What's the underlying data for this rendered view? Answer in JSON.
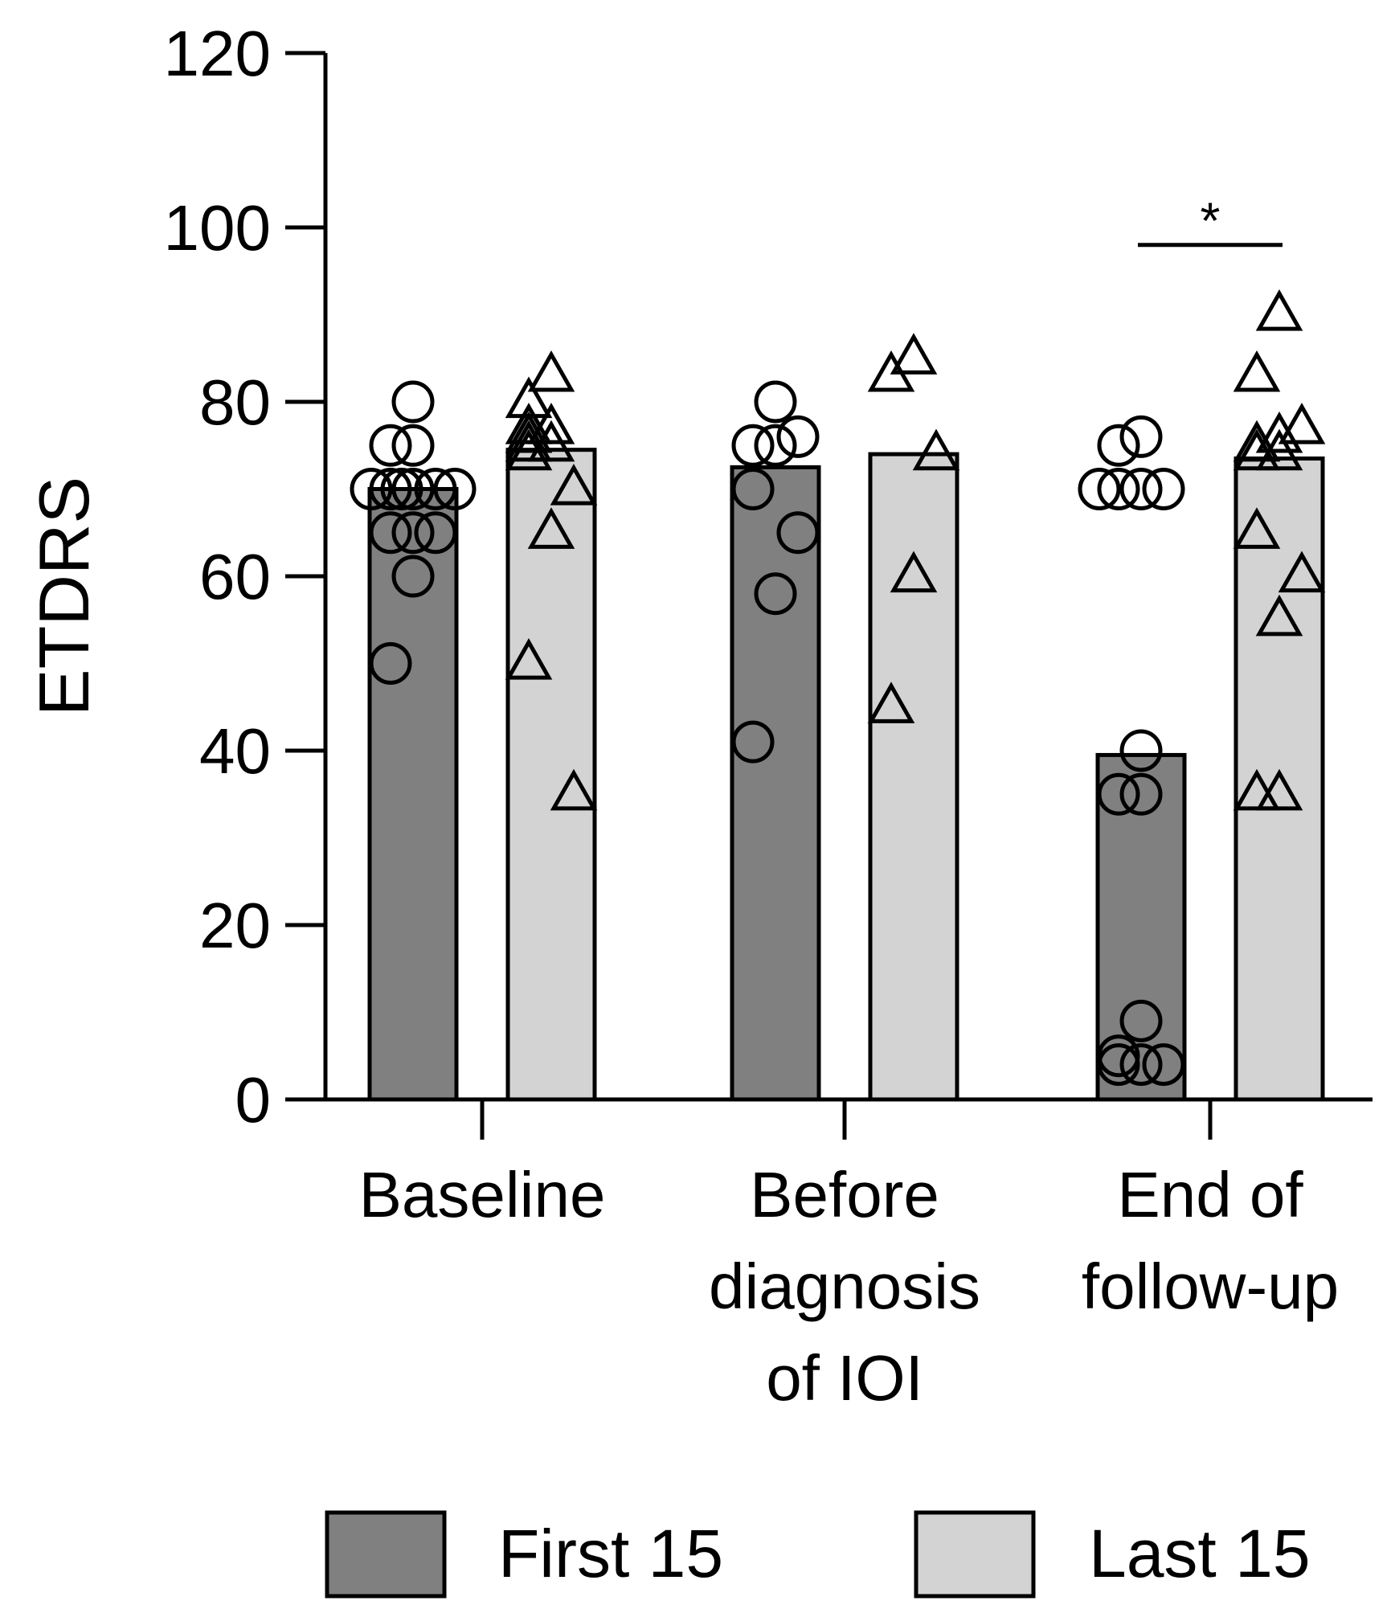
{
  "chart_data": {
    "type": "bar",
    "title": "",
    "xlabel": "",
    "ylabel": "ETDRS",
    "ylim": [
      0,
      120
    ],
    "yticks": [
      0,
      20,
      40,
      60,
      80,
      100,
      120
    ],
    "categories": [
      [
        "Baseline"
      ],
      [
        "Before",
        "diagnosis",
        "of IOI"
      ],
      [
        "End of",
        "follow-up"
      ]
    ],
    "series": [
      {
        "name": "First 15",
        "color": "#808080",
        "marker": "circle",
        "values": [
          70,
          72.5,
          39.5
        ],
        "points": [
          [
            80,
            75,
            75,
            70,
            70,
            70,
            70,
            70,
            70,
            65,
            65,
            65,
            60,
            50
          ],
          [
            80,
            75,
            76,
            75,
            70,
            65,
            58,
            41
          ],
          [
            76,
            75,
            70,
            70,
            70,
            70,
            40,
            35,
            35,
            9,
            5,
            4,
            4,
            4
          ]
        ]
      },
      {
        "name": "Last 15",
        "color": "#d3d3d3",
        "marker": "triangle",
        "values": [
          74.5,
          74,
          73.5
        ],
        "points": [
          [
            83,
            80,
            77,
            77,
            76,
            75,
            75,
            74,
            70,
            65,
            50,
            35
          ],
          [
            85,
            83,
            74,
            60,
            45
          ],
          [
            90,
            83,
            77,
            76,
            75,
            74,
            74,
            65,
            60,
            55,
            35,
            35
          ]
        ]
      }
    ],
    "annotations": [
      {
        "text": "*",
        "between": [
          "First 15",
          "Last 15"
        ],
        "category_index": 2,
        "y": 98
      }
    ],
    "legend": {
      "position": "bottom",
      "entries": [
        "First 15",
        "Last 15"
      ]
    }
  }
}
